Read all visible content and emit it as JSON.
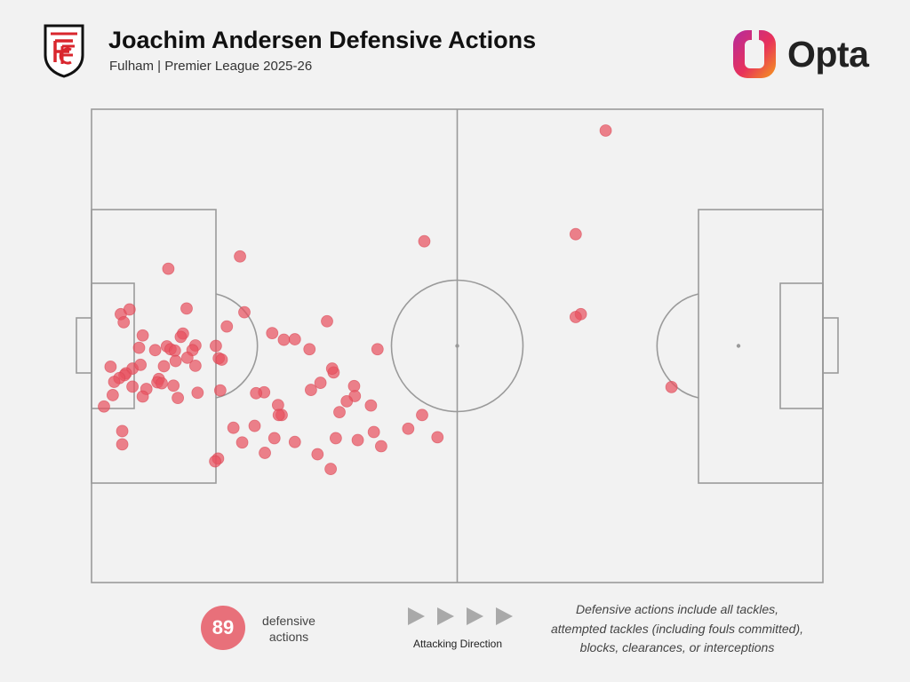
{
  "header": {
    "title": "Joachim Andersen Defensive Actions",
    "subtitle": "Fulham | Premier League 2025-26",
    "club_crest_icon": "fulham-crest-icon",
    "brand": "Opta",
    "brand_logo_icon": "opta-logo-icon"
  },
  "footer": {
    "count": "89",
    "count_label_line1": "defensive",
    "count_label_line2": "actions",
    "direction_label": "Attacking Direction",
    "direction_icon": "play-arrow-icon",
    "footnote_lines": [
      "Defensive actions include all tackles,",
      "attempted tackles (including fouls committed),",
      "blocks, clearances, or interceptions"
    ]
  },
  "colors": {
    "point": "#e8525f",
    "count_badge": "#e8707a",
    "pitch_lines": "#9a9a9a",
    "background": "#f2f2f2"
  },
  "chart_data": {
    "type": "scatter",
    "title": "Joachim Andersen Defensive Actions",
    "xlim": [
      0,
      100
    ],
    "ylim": [
      0,
      100
    ],
    "grid": false,
    "legend": "none",
    "attacking_direction": "left-to-right",
    "total": 89,
    "points": [
      [
        70.3,
        4.5
      ],
      [
        45.5,
        27.9
      ],
      [
        66.2,
        26.4
      ],
      [
        66.9,
        43.3
      ],
      [
        66.2,
        43.9
      ],
      [
        79.3,
        58.7
      ],
      [
        20.3,
        31.1
      ],
      [
        10.5,
        33.7
      ],
      [
        13.0,
        42.1
      ],
      [
        20.9,
        42.9
      ],
      [
        4.0,
        43.3
      ],
      [
        5.2,
        42.3
      ],
      [
        4.4,
        45.0
      ],
      [
        12.5,
        47.4
      ],
      [
        18.5,
        45.9
      ],
      [
        32.2,
        44.8
      ],
      [
        7.0,
        47.8
      ],
      [
        12.2,
        48.1
      ],
      [
        17.0,
        50.0
      ],
      [
        14.2,
        49.9
      ],
      [
        10.3,
        50.1
      ],
      [
        6.5,
        50.4
      ],
      [
        26.3,
        48.7
      ],
      [
        10.8,
        50.7
      ],
      [
        8.7,
        50.9
      ],
      [
        13.8,
        50.9
      ],
      [
        11.4,
        51.0
      ],
      [
        13.1,
        52.5
      ],
      [
        14.2,
        54.2
      ],
      [
        11.5,
        53.2
      ],
      [
        5.6,
        54.8
      ],
      [
        6.7,
        54.0
      ],
      [
        4.7,
        55.8
      ],
      [
        9.9,
        54.3
      ],
      [
        17.4,
        52.6
      ],
      [
        17.8,
        52.9
      ],
      [
        24.7,
        47.3
      ],
      [
        2.6,
        54.4
      ],
      [
        29.8,
        50.7
      ],
      [
        33.1,
        55.6
      ],
      [
        27.8,
        48.6
      ],
      [
        39.1,
        50.7
      ],
      [
        32.9,
        54.8
      ],
      [
        31.3,
        57.8
      ],
      [
        4.5,
        56.2
      ],
      [
        3.8,
        56.8
      ],
      [
        9.2,
        57.0
      ],
      [
        3.1,
        57.6
      ],
      [
        9.0,
        57.7
      ],
      [
        5.6,
        58.6
      ],
      [
        7.5,
        59.1
      ],
      [
        11.2,
        58.4
      ],
      [
        2.9,
        60.4
      ],
      [
        11.8,
        61.0
      ],
      [
        7.0,
        60.7
      ],
      [
        9.6,
        57.9
      ],
      [
        14.5,
        59.9
      ],
      [
        30.0,
        59.3
      ],
      [
        25.5,
        62.5
      ],
      [
        35.9,
        58.5
      ],
      [
        17.6,
        59.4
      ],
      [
        26.0,
        64.6
      ],
      [
        23.6,
        59.8
      ],
      [
        22.5,
        60.0
      ],
      [
        22.3,
        66.9
      ],
      [
        1.7,
        62.8
      ],
      [
        36.0,
        60.6
      ],
      [
        38.2,
        62.6
      ],
      [
        33.9,
        64.0
      ],
      [
        34.9,
        61.7
      ],
      [
        25.6,
        64.6
      ],
      [
        45.2,
        64.6
      ],
      [
        4.2,
        68.0
      ],
      [
        4.2,
        70.8
      ],
      [
        19.4,
        67.3
      ],
      [
        27.8,
        70.3
      ],
      [
        25.0,
        69.5
      ],
      [
        23.7,
        72.6
      ],
      [
        20.6,
        70.4
      ],
      [
        33.4,
        69.5
      ],
      [
        43.3,
        67.5
      ],
      [
        38.6,
        68.2
      ],
      [
        36.4,
        69.9
      ],
      [
        39.6,
        71.2
      ],
      [
        47.3,
        69.3
      ],
      [
        17.3,
        73.8
      ],
      [
        16.9,
        74.4
      ],
      [
        30.9,
        72.9
      ],
      [
        32.7,
        76.0
      ]
    ]
  }
}
